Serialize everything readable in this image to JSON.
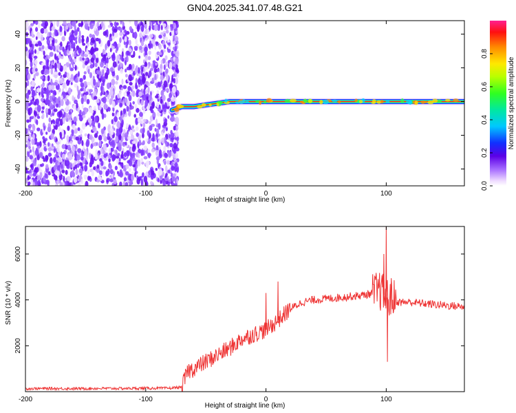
{
  "title": "GN04.2025.341.07.48.G21",
  "chart_data": [
    {
      "type": "heatmap",
      "title": "GN04.2025.341.07.48.G21",
      "xlabel": "Height of straight line (km)",
      "ylabel": "Frequency (Hz)",
      "xlim": [
        -200,
        165
      ],
      "ylim": [
        -50,
        48
      ],
      "x_ticks": [
        -200,
        -100,
        0,
        100
      ],
      "y_ticks": [
        -40,
        -20,
        0,
        20,
        40
      ],
      "noise_region_x": [
        -200,
        -78
      ],
      "signal_ridge": {
        "x": [
          -78,
          -70,
          -60,
          -50,
          -40,
          -30,
          -20,
          -10,
          0,
          20,
          40,
          60,
          80,
          90,
          100,
          120,
          140,
          165
        ],
        "frequency": [
          -5,
          -3,
          -3,
          -2,
          -1,
          0,
          0,
          0,
          0,
          0,
          0,
          0,
          0,
          0,
          0,
          0,
          0,
          0
        ]
      },
      "colorbar": {
        "label": "Normalized spectral amplitude",
        "range": [
          0.0,
          1.0
        ],
        "ticks": [
          0.0,
          0.2,
          0.4,
          0.6,
          0.8
        ],
        "tick_labels": [
          "0.0",
          "0.2",
          "0.4",
          "0.6",
          "0.8"
        ]
      }
    },
    {
      "type": "line",
      "xlabel": "Height of straight line (km)",
      "ylabel": "SNR (10 * v/v)",
      "xlim": [
        -200,
        165
      ],
      "ylim": [
        0,
        7200
      ],
      "x_ticks": [
        -200,
        -100,
        0,
        100
      ],
      "y_ticks": [
        2000,
        4000,
        6000
      ],
      "color": "#ee3333",
      "series": [
        {
          "name": "SNR",
          "x": [
            -200,
            -180,
            -160,
            -140,
            -120,
            -100,
            -80,
            -70,
            -65,
            -60,
            -50,
            -40,
            -30,
            -20,
            -10,
            0,
            10,
            20,
            30,
            40,
            60,
            80,
            90,
            95,
            100,
            105,
            110,
            120,
            140,
            165
          ],
          "values": [
            130,
            140,
            130,
            140,
            140,
            150,
            150,
            200,
            900,
            1000,
            1300,
            1600,
            1900,
            2300,
            2500,
            2700,
            3100,
            3600,
            3900,
            4000,
            4100,
            4200,
            4300,
            4400,
            4100,
            4100,
            3900,
            3900,
            3800,
            3700
          ]
        }
      ],
      "spikes": [
        {
          "x": 0,
          "value": 4300
        },
        {
          "x": 10,
          "value": 4800
        },
        {
          "x": 98,
          "value": 6000
        },
        {
          "x": 100,
          "value": 7200
        },
        {
          "x": 101,
          "value": 1300
        }
      ]
    }
  ]
}
